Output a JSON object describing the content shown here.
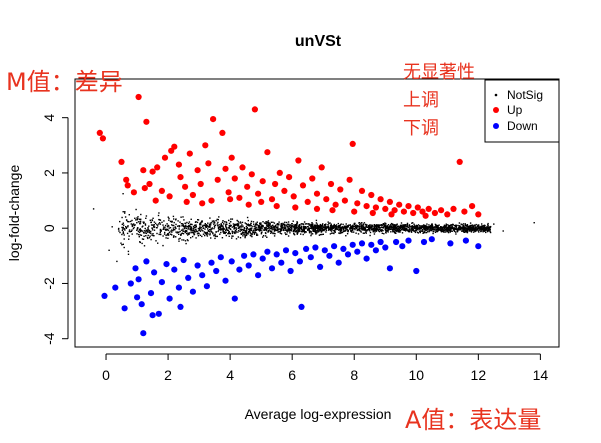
{
  "chart_data": {
    "type": "scatter",
    "title": "unVSt",
    "xlabel": "Average log-expression",
    "ylabel": "log-fold-change",
    "xlim": [
      -1,
      14.6
    ],
    "ylim": [
      -4.3,
      5.4
    ],
    "xticks": [
      0,
      2,
      4,
      6,
      8,
      10,
      12,
      14
    ],
    "yticks": [
      -4,
      -2,
      0,
      2,
      4
    ],
    "grid": false,
    "legend_position": "top-right",
    "legend": [
      {
        "name": "NotSig",
        "color": "#000000"
      },
      {
        "name": "Up",
        "color": "#ff0000"
      },
      {
        "name": "Down",
        "color": "#0000ff"
      }
    ],
    "series": [
      {
        "name": "Up",
        "color": "#ff0000",
        "points": [
          [
            -0.2,
            3.45
          ],
          [
            -0.1,
            3.25
          ],
          [
            0.5,
            2.4
          ],
          [
            0.7,
            1.55
          ],
          [
            0.65,
            1.75
          ],
          [
            1.05,
            4.75
          ],
          [
            1.3,
            3.85
          ],
          [
            1.2,
            2.1
          ],
          [
            1.25,
            1.45
          ],
          [
            1.4,
            1.6
          ],
          [
            1.5,
            2.05
          ],
          [
            1.65,
            2.2
          ],
          [
            1.8,
            1.35
          ],
          [
            1.9,
            2.55
          ],
          [
            2.1,
            2.8
          ],
          [
            2.2,
            2.95
          ],
          [
            2.05,
            1.15
          ],
          [
            2.35,
            2.3
          ],
          [
            2.4,
            1.85
          ],
          [
            2.55,
            1.5
          ],
          [
            2.7,
            2.7
          ],
          [
            2.8,
            1.2
          ],
          [
            2.95,
            2.1
          ],
          [
            3.05,
            1.6
          ],
          [
            3.2,
            3.0
          ],
          [
            3.3,
            2.35
          ],
          [
            3.45,
            3.95
          ],
          [
            3.4,
            1.0
          ],
          [
            3.6,
            1.75
          ],
          [
            3.75,
            3.45
          ],
          [
            3.85,
            2.15
          ],
          [
            3.95,
            1.3
          ],
          [
            4.05,
            2.55
          ],
          [
            4.15,
            1.8
          ],
          [
            4.3,
            1.1
          ],
          [
            4.4,
            2.2
          ],
          [
            4.55,
            1.5
          ],
          [
            4.7,
            1.95
          ],
          [
            4.8,
            4.3
          ],
          [
            4.9,
            1.25
          ],
          [
            5.05,
            1.7
          ],
          [
            5.2,
            2.75
          ],
          [
            5.35,
            1.05
          ],
          [
            5.45,
            1.6
          ],
          [
            5.6,
            2.0
          ],
          [
            5.75,
            1.35
          ],
          [
            5.9,
            1.85
          ],
          [
            6.05,
            1.15
          ],
          [
            6.2,
            2.45
          ],
          [
            6.35,
            1.55
          ],
          [
            6.5,
            0.95
          ],
          [
            6.65,
            1.8
          ],
          [
            6.8,
            1.25
          ],
          [
            6.95,
            2.2
          ],
          [
            7.1,
            1.05
          ],
          [
            7.25,
            1.6
          ],
          [
            7.4,
            0.85
          ],
          [
            7.55,
            1.4
          ],
          [
            7.7,
            1.0
          ],
          [
            7.85,
            1.75
          ],
          [
            7.95,
            3.05
          ],
          [
            8.1,
            0.9
          ],
          [
            8.25,
            1.35
          ],
          [
            8.4,
            0.8
          ],
          [
            8.55,
            1.2
          ],
          [
            8.7,
            0.75
          ],
          [
            8.85,
            1.05
          ],
          [
            9.0,
            0.7
          ],
          [
            9.15,
            0.95
          ],
          [
            9.3,
            0.65
          ],
          [
            9.45,
            0.85
          ],
          [
            9.6,
            0.6
          ],
          [
            9.75,
            0.8
          ],
          [
            9.9,
            0.55
          ],
          [
            10.05,
            0.75
          ],
          [
            10.2,
            0.6
          ],
          [
            10.4,
            0.7
          ],
          [
            10.6,
            0.55
          ],
          [
            10.8,
            0.65
          ],
          [
            11.0,
            0.5
          ],
          [
            11.2,
            0.7
          ],
          [
            11.4,
            2.4
          ],
          [
            11.55,
            0.6
          ],
          [
            11.8,
            0.8
          ],
          [
            12.0,
            0.5
          ],
          [
            0.9,
            1.3
          ],
          [
            1.6,
            1.0
          ],
          [
            2.6,
            0.95
          ],
          [
            3.1,
            0.9
          ],
          [
            4.6,
            0.85
          ],
          [
            5.5,
            0.8
          ],
          [
            6.1,
            0.75
          ],
          [
            6.8,
            0.7
          ],
          [
            7.3,
            0.65
          ],
          [
            8.0,
            0.6
          ],
          [
            8.6,
            0.55
          ],
          [
            9.2,
            0.5
          ],
          [
            10.3,
            0.45
          ],
          [
            4.0,
            1.05
          ],
          [
            5.0,
            0.95
          ]
        ]
      },
      {
        "name": "Down",
        "color": "#0000ff",
        "points": [
          [
            -0.05,
            -2.45
          ],
          [
            0.3,
            -2.15
          ],
          [
            0.6,
            -2.9
          ],
          [
            0.95,
            -1.45
          ],
          [
            1.05,
            -1.85
          ],
          [
            1.15,
            -2.75
          ],
          [
            1.2,
            -3.8
          ],
          [
            1.3,
            -1.2
          ],
          [
            1.45,
            -2.35
          ],
          [
            1.55,
            -1.6
          ],
          [
            1.7,
            -3.1
          ],
          [
            1.8,
            -1.95
          ],
          [
            1.95,
            -1.3
          ],
          [
            2.05,
            -2.55
          ],
          [
            2.2,
            -1.5
          ],
          [
            2.35,
            -2.15
          ],
          [
            2.5,
            -1.15
          ],
          [
            2.65,
            -1.8
          ],
          [
            2.8,
            -2.3
          ],
          [
            2.95,
            -1.35
          ],
          [
            3.1,
            -1.7
          ],
          [
            3.25,
            -2.1
          ],
          [
            3.4,
            -1.25
          ],
          [
            3.55,
            -1.55
          ],
          [
            3.7,
            -1.05
          ],
          [
            3.85,
            -1.9
          ],
          [
            4.05,
            -1.2
          ],
          [
            4.15,
            -2.55
          ],
          [
            4.3,
            -1.5
          ],
          [
            4.45,
            -1.0
          ],
          [
            4.6,
            -1.35
          ],
          [
            4.75,
            -0.95
          ],
          [
            4.9,
            -1.7
          ],
          [
            5.05,
            -1.1
          ],
          [
            5.2,
            -0.85
          ],
          [
            5.35,
            -1.45
          ],
          [
            5.5,
            -0.95
          ],
          [
            5.65,
            -1.25
          ],
          [
            5.8,
            -0.8
          ],
          [
            5.95,
            -1.55
          ],
          [
            6.1,
            -0.9
          ],
          [
            6.25,
            -1.2
          ],
          [
            6.3,
            -2.85
          ],
          [
            6.45,
            -0.75
          ],
          [
            6.6,
            -1.05
          ],
          [
            6.75,
            -0.7
          ],
          [
            6.9,
            -1.4
          ],
          [
            7.05,
            -0.8
          ],
          [
            7.2,
            -1.0
          ],
          [
            7.35,
            -0.65
          ],
          [
            7.5,
            -1.25
          ],
          [
            7.65,
            -0.75
          ],
          [
            7.8,
            -0.95
          ],
          [
            7.95,
            -0.6
          ],
          [
            8.1,
            -0.85
          ],
          [
            8.25,
            -0.55
          ],
          [
            8.4,
            -1.1
          ],
          [
            8.55,
            -0.6
          ],
          [
            8.7,
            -0.8
          ],
          [
            8.85,
            -0.5
          ],
          [
            9.0,
            -0.7
          ],
          [
            9.15,
            -1.45
          ],
          [
            9.35,
            -0.5
          ],
          [
            9.55,
            -0.65
          ],
          [
            9.75,
            -0.45
          ],
          [
            10.0,
            -1.55
          ],
          [
            10.25,
            -0.5
          ],
          [
            10.5,
            -0.4
          ],
          [
            11.1,
            -0.55
          ],
          [
            11.6,
            -0.45
          ],
          [
            12.0,
            -0.65
          ],
          [
            0.8,
            -2.0
          ],
          [
            1.0,
            -2.5
          ],
          [
            1.5,
            -3.15
          ],
          [
            2.4,
            -2.85
          ]
        ]
      },
      {
        "name": "NotSig",
        "color": "#000000",
        "description_note": "",
        "points": []
      }
    ]
  },
  "annotations": {
    "m_label": "M值：差异",
    "a_label": "A值：表达量",
    "nonsig_label": "无显著性",
    "up_label": "上调",
    "down_label": "下调"
  }
}
